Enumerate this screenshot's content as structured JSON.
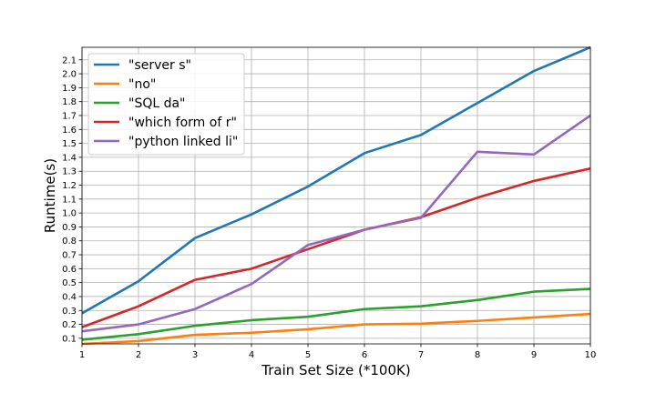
{
  "chart_data": {
    "type": "line",
    "title": "",
    "xlabel": "Train Set Size (*100K)",
    "ylabel": "Runtime(s)",
    "x": [
      1,
      2,
      3,
      4,
      5,
      6,
      7,
      8,
      9,
      10
    ],
    "xlim": [
      1,
      10
    ],
    "ylim": [
      0.06,
      2.19
    ],
    "xticks": [
      "1",
      "2",
      "3",
      "4",
      "5",
      "6",
      "7",
      "8",
      "9",
      "10"
    ],
    "yticks": [
      "0.1",
      "0.2",
      "0.3",
      "0.4",
      "0.5",
      "0.6",
      "0.7",
      "0.8",
      "0.9",
      "1.0",
      "1.1",
      "1.2",
      "1.3",
      "1.4",
      "1.5",
      "1.6",
      "1.7",
      "1.8",
      "1.9",
      "2.0",
      "2.1"
    ],
    "grid": true,
    "legend_position": "top-left",
    "series": [
      {
        "name": "\"server s\"",
        "color": "#1f77b4",
        "values": [
          0.28,
          0.51,
          0.82,
          0.99,
          1.19,
          1.43,
          1.56,
          1.79,
          2.02,
          2.19
        ]
      },
      {
        "name": "\"no\"",
        "color": "#ff7f0e",
        "values": [
          0.06,
          0.08,
          0.125,
          0.14,
          0.165,
          0.2,
          0.205,
          0.225,
          0.25,
          0.275
        ]
      },
      {
        "name": "\"SQL da\"",
        "color": "#2ca02c",
        "values": [
          0.09,
          0.13,
          0.19,
          0.23,
          0.255,
          0.31,
          0.33,
          0.375,
          0.435,
          0.455
        ]
      },
      {
        "name": "\"which form of r\"",
        "color": "#d62728",
        "values": [
          0.18,
          0.33,
          0.52,
          0.6,
          0.74,
          0.88,
          0.97,
          1.11,
          1.23,
          1.32
        ]
      },
      {
        "name": "\"python linked li\"",
        "color": "#9467bd",
        "values": [
          0.15,
          0.2,
          0.31,
          0.49,
          0.77,
          0.88,
          0.965,
          1.44,
          1.42,
          1.7
        ]
      }
    ]
  }
}
